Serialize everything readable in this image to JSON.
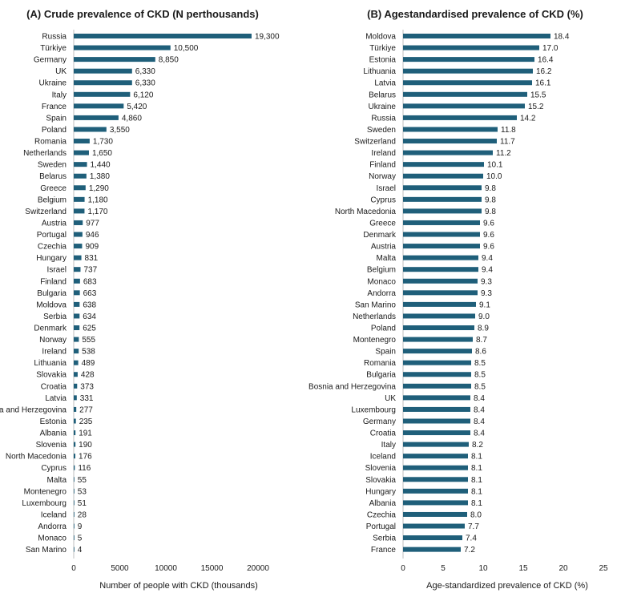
{
  "chart_data": [
    {
      "type": "bar",
      "orientation": "horizontal",
      "title": "(A) Crude prevalence of CKD (N perthousands)",
      "xlabel": "Number of people with CKD (thousands)",
      "ylabel": "",
      "xlim": [
        0,
        22000
      ],
      "xticks": [
        "0",
        "5000",
        "10000",
        "15000",
        "20000"
      ],
      "tick_values": [
        0,
        5000,
        10000,
        15000,
        20000
      ],
      "color": "#1f5f7a",
      "categories": [
        "Russia",
        "Türkiye",
        "Germany",
        "UK",
        "Ukraine",
        "Italy",
        "France",
        "Spain",
        "Poland",
        "Romania",
        "Netherlands",
        "Sweden",
        "Belarus",
        "Greece",
        "Belgium",
        "Switzerland",
        "Austria",
        "Portugal",
        "Czechia",
        "Hungary",
        "Israel",
        "Finland",
        "Bulgaria",
        "Moldova",
        "Serbia",
        "Denmark",
        "Norway",
        "Ireland",
        "Lithuania",
        "Slovakia",
        "Croatia",
        "Latvia",
        "ia and Herzegovina",
        "Estonia",
        "Albania",
        "Slovenia",
        "North Macedonia",
        "Cyprus",
        "Malta",
        "Montenegro",
        "Luxembourg",
        "Iceland",
        "Andorra",
        "Monaco",
        "San Marino"
      ],
      "values": [
        19300,
        10500,
        8850,
        6330,
        6330,
        6120,
        5420,
        4860,
        3550,
        1730,
        1650,
        1440,
        1380,
        1290,
        1180,
        1170,
        977,
        946,
        909,
        831,
        737,
        683,
        663,
        638,
        634,
        625,
        555,
        538,
        489,
        428,
        373,
        331,
        277,
        235,
        191,
        190,
        176,
        116,
        55,
        53,
        51,
        28,
        9,
        5,
        4
      ],
      "value_labels": [
        "19,300",
        "10,500",
        "8,850",
        "6,330",
        "6,330",
        "6,120",
        "5,420",
        "4,860",
        "3,550",
        "1,730",
        "1,650",
        "1,440",
        "1,380",
        "1,290",
        "1,180",
        "1,170",
        "977",
        "946",
        "909",
        "831",
        "737",
        "683",
        "663",
        "638",
        "634",
        "625",
        "555",
        "538",
        "489",
        "428",
        "373",
        "331",
        "277",
        "235",
        "191",
        "190",
        "176",
        "116",
        "55",
        "53",
        "51",
        "28",
        "9",
        "5",
        "4"
      ]
    },
    {
      "type": "bar",
      "orientation": "horizontal",
      "title": "(B) Agestandardised prevalence of CKD (%)",
      "xlabel": "Age-standardized prevalence of CKD (%)",
      "ylabel": "",
      "xlim": [
        0,
        25
      ],
      "xticks": [
        "0",
        "5",
        "10",
        "15",
        "20",
        "25"
      ],
      "tick_values": [
        0,
        5,
        10,
        15,
        20,
        25
      ],
      "color": "#1f5f7a",
      "categories": [
        "Moldova",
        "Türkiye",
        "Estonia",
        "Lithuania",
        "Latvia",
        "Belarus",
        "Ukraine",
        "Russia",
        "Sweden",
        "Switzerland",
        "Ireland",
        "Finland",
        "Norway",
        "Israel",
        "Cyprus",
        "North Macedonia",
        "Greece",
        "Denmark",
        "Austria",
        "Malta",
        "Belgium",
        "Monaco",
        "Andorra",
        "San Marino",
        "Netherlands",
        "Poland",
        "Montenegro",
        "Spain",
        "Romania",
        "Bulgaria",
        "Bosnia and Herzegovina",
        "UK",
        "Luxembourg",
        "Germany",
        "Croatia",
        "Italy",
        "Iceland",
        "Slovenia",
        "Slovakia",
        "Hungary",
        "Albania",
        "Czechia",
        "Portugal",
        "Serbia",
        "France"
      ],
      "values": [
        18.4,
        17.0,
        16.4,
        16.2,
        16.1,
        15.5,
        15.2,
        14.2,
        11.8,
        11.7,
        11.2,
        10.1,
        10.0,
        9.8,
        9.8,
        9.8,
        9.6,
        9.6,
        9.6,
        9.4,
        9.4,
        9.3,
        9.3,
        9.1,
        9.0,
        8.9,
        8.7,
        8.6,
        8.5,
        8.5,
        8.5,
        8.4,
        8.4,
        8.4,
        8.4,
        8.2,
        8.1,
        8.1,
        8.1,
        8.1,
        8.1,
        8.0,
        7.7,
        7.4,
        7.2
      ],
      "value_labels": [
        "18.4",
        "17.0",
        "16.4",
        "16.2",
        "16.1",
        "15.5",
        "15.2",
        "14.2",
        "11.8",
        "11.7",
        "11.2",
        "10.1",
        "10.0",
        "9.8",
        "9.8",
        "9.8",
        "9.6",
        "9.6",
        "9.6",
        "9.4",
        "9.4",
        "9.3",
        "9.3",
        "9.1",
        "9.0",
        "8.9",
        "8.7",
        "8.6",
        "8.5",
        "8.5",
        "8.5",
        "8.4",
        "8.4",
        "8.4",
        "8.4",
        "8.2",
        "8.1",
        "8.1",
        "8.1",
        "8.1",
        "8.1",
        "8.0",
        "7.7",
        "7.4",
        "7.2"
      ]
    }
  ]
}
